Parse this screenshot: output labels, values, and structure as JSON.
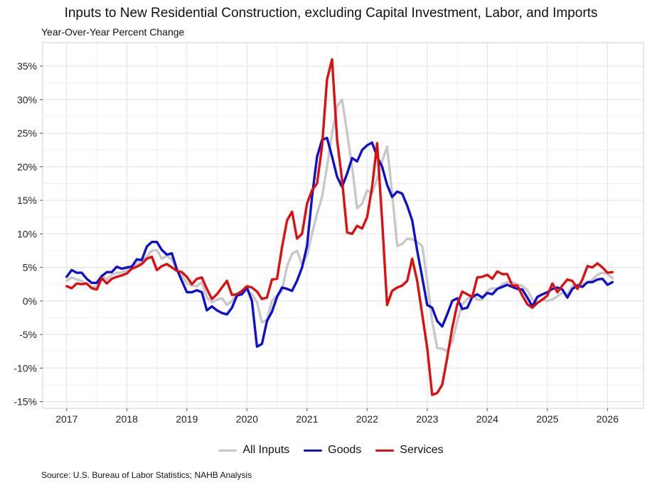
{
  "chart_data": {
    "type": "line",
    "title": "Inputs to New Residential Construction, excluding Capital Investment, Labor, and Imports",
    "subtitle": "Year-Over-Year Percent Change",
    "source": "Source: U.S. Bureau of Labor Statistics; NAHB Analysis",
    "xlabel": "",
    "ylabel": "",
    "xlim": [
      2016.6,
      2026.6
    ],
    "ylim": [
      -16,
      38.5
    ],
    "x_ticks": [
      2017,
      2018,
      2019,
      2020,
      2021,
      2022,
      2023,
      2024,
      2025,
      2026
    ],
    "y_ticks": [
      -15,
      -10,
      -5,
      0,
      5,
      10,
      15,
      20,
      25,
      30,
      35
    ],
    "y_tick_labels": [
      "-15%",
      "-10%",
      "-5%",
      "0%",
      "5%",
      "10%",
      "15%",
      "20%",
      "25%",
      "30%",
      "35%"
    ],
    "grid": true,
    "legend_position": "bottom",
    "x": [
      2017.0,
      2017.083,
      2017.167,
      2017.25,
      2017.333,
      2017.417,
      2017.5,
      2017.583,
      2017.667,
      2017.75,
      2017.833,
      2017.917,
      2018.0,
      2018.083,
      2018.167,
      2018.25,
      2018.333,
      2018.417,
      2018.5,
      2018.583,
      2018.667,
      2018.75,
      2018.833,
      2018.917,
      2019.0,
      2019.083,
      2019.167,
      2019.25,
      2019.333,
      2019.417,
      2019.5,
      2019.583,
      2019.667,
      2019.75,
      2019.833,
      2019.917,
      2020.0,
      2020.083,
      2020.167,
      2020.25,
      2020.333,
      2020.417,
      2020.5,
      2020.583,
      2020.667,
      2020.75,
      2020.833,
      2020.917,
      2021.0,
      2021.083,
      2021.167,
      2021.25,
      2021.333,
      2021.417,
      2021.5,
      2021.583,
      2021.667,
      2021.75,
      2021.833,
      2021.917,
      2022.0,
      2022.083,
      2022.167,
      2022.25,
      2022.333,
      2022.417,
      2022.5,
      2022.583,
      2022.667,
      2022.75,
      2022.833,
      2022.917,
      2023.0,
      2023.083,
      2023.167,
      2023.25,
      2023.333,
      2023.417,
      2023.5,
      2023.583,
      2023.667,
      2023.75,
      2023.833,
      2023.917,
      2024.0,
      2024.083,
      2024.167,
      2024.25,
      2024.333,
      2024.417,
      2024.5,
      2024.583,
      2024.667,
      2024.75,
      2024.833,
      2024.917,
      2025.0,
      2025.083,
      2025.167,
      2025.25,
      2025.333,
      2025.417,
      2025.5,
      2025.583,
      2025.667,
      2025.75,
      2025.833,
      2025.917,
      2026.0,
      2026.083
    ],
    "series": [
      {
        "name": "All Inputs",
        "color": "#c8c8c8",
        "values": [
          3.0,
          3.5,
          3.2,
          3.0,
          2.5,
          2.0,
          2.2,
          3.8,
          3.2,
          3.9,
          4.2,
          4.2,
          4.6,
          4.9,
          5.5,
          5.8,
          6.6,
          7.5,
          7.6,
          6.3,
          6.7,
          6.2,
          4.5,
          3.9,
          2.6,
          2.3,
          2.2,
          2.8,
          0.5,
          -0.2,
          0.2,
          0.4,
          -0.6,
          0.0,
          1.1,
          1.4,
          1.5,
          1.0,
          -0.2,
          -3.2,
          -2.8,
          0.0,
          0.8,
          1.5,
          5.2,
          7.0,
          7.5,
          5.4,
          6.8,
          10.0,
          13.0,
          15.5,
          20.0,
          25.0,
          29.0,
          30.0,
          25.0,
          20.0,
          13.8,
          14.5,
          16.5,
          16.0,
          18.2,
          20.8,
          23.0,
          16.0,
          8.2,
          8.5,
          9.3,
          9.2,
          8.8,
          8.2,
          3.0,
          -3.0,
          -7.0,
          -7.1,
          -7.5,
          -6.0,
          -3.0,
          -0.5,
          0.3,
          0.8,
          0.2,
          0.2,
          1.5,
          1.9,
          1.8,
          2.5,
          2.8,
          2.8,
          2.5,
          2.2,
          1.6,
          0.2,
          -0.3,
          0.2,
          0.0,
          0.2,
          0.7,
          1.2,
          1.0,
          2.2,
          2.5,
          2.5,
          2.7,
          3.2,
          3.9,
          4.2,
          4.0,
          3.4
        ]
      },
      {
        "name": "Goods",
        "color": "#1010cc",
        "values": [
          3.6,
          4.6,
          4.2,
          4.2,
          3.3,
          2.7,
          2.7,
          3.7,
          4.3,
          4.3,
          5.1,
          4.8,
          5.0,
          5.1,
          6.2,
          6.1,
          8.1,
          8.8,
          8.8,
          7.6,
          6.9,
          7.1,
          4.7,
          3.0,
          1.3,
          1.3,
          1.6,
          1.3,
          -1.4,
          -0.8,
          -1.4,
          -1.8,
          -2.0,
          -1.0,
          0.8,
          1.0,
          2.0,
          0.0,
          -6.8,
          -6.4,
          -3.0,
          -1.6,
          0.6,
          2.0,
          1.8,
          1.5,
          3.0,
          5.0,
          8.2,
          15.5,
          21.5,
          24.0,
          24.3,
          21.5,
          18.5,
          17.0,
          19.0,
          21.3,
          20.8,
          22.5,
          23.2,
          23.6,
          21.5,
          20.0,
          17.3,
          15.5,
          16.3,
          16.0,
          14.2,
          12.0,
          7.5,
          3.5,
          -0.6,
          -1.0,
          -3.0,
          -3.8,
          -2.0,
          0.0,
          0.4,
          -1.2,
          -1.0,
          0.6,
          1.0,
          0.5,
          1.2,
          1.0,
          1.8,
          2.1,
          2.4,
          2.1,
          1.8,
          1.7,
          0.5,
          -0.8,
          0.6,
          1.0,
          1.3,
          1.8,
          2.0,
          1.7,
          0.5,
          1.8,
          2.3,
          2.1,
          2.8,
          2.8,
          3.2,
          3.3,
          2.4,
          2.8
        ]
      },
      {
        "name": "Services",
        "color": "#dd1010",
        "values": [
          2.2,
          1.9,
          2.6,
          2.5,
          2.6,
          1.9,
          1.7,
          3.4,
          2.6,
          3.3,
          3.6,
          3.8,
          4.1,
          4.8,
          5.1,
          5.5,
          6.3,
          6.6,
          4.6,
          5.2,
          5.5,
          5.0,
          4.5,
          4.3,
          3.6,
          2.5,
          3.3,
          3.5,
          1.8,
          0.3,
          1.0,
          2.0,
          3.0,
          0.9,
          1.0,
          1.5,
          2.2,
          2.0,
          1.4,
          0.3,
          0.5,
          3.2,
          3.3,
          8.0,
          12.0,
          13.3,
          9.3,
          10.0,
          14.5,
          16.5,
          17.5,
          23.0,
          33.0,
          36.0,
          24.0,
          18.0,
          10.2,
          10.0,
          11.2,
          10.8,
          12.5,
          17.0,
          23.5,
          12.0,
          -0.6,
          1.5,
          2.0,
          2.3,
          3.0,
          6.3,
          3.0,
          -2.0,
          -7.0,
          -14.0,
          -13.7,
          -12.5,
          -8.5,
          -4.0,
          -0.5,
          1.4,
          1.0,
          0.6,
          3.5,
          3.6,
          3.9,
          3.3,
          4.4,
          4.0,
          4.0,
          2.3,
          2.3,
          0.8,
          -0.5,
          -1.0,
          -0.3,
          0.2,
          0.8,
          2.6,
          1.3,
          2.3,
          3.2,
          3.0,
          1.8,
          3.2,
          5.2,
          5.0,
          5.6,
          5.0,
          4.2,
          4.3
        ]
      }
    ]
  }
}
